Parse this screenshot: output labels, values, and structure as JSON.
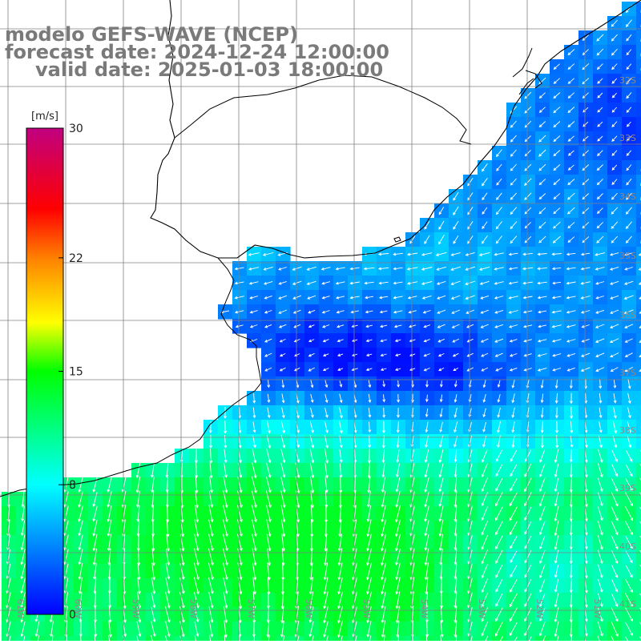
{
  "titles": {
    "model": "modelo GEFS-WAVE (NCEP)",
    "forecast": "forecast date: 2024-12-24 12:00:00",
    "valid": "valid date: 2025-01-03 18:00:00"
  },
  "colorbar": {
    "unit": "[m/s]",
    "min": 0,
    "max": 30,
    "tick_labels": [
      "30",
      "22",
      "15",
      "8",
      "0"
    ],
    "tick_values": [
      30,
      22,
      15,
      8,
      0
    ],
    "stops": [
      {
        "v": 0,
        "color": "#0000ff"
      },
      {
        "v": 8,
        "color": "#00ffff"
      },
      {
        "v": 15,
        "color": "#00ff00"
      },
      {
        "v": 18,
        "color": "#ffff00"
      },
      {
        "v": 22,
        "color": "#ff8000"
      },
      {
        "v": 25,
        "color": "#ff0000"
      },
      {
        "v": 30,
        "color": "#c00080"
      }
    ]
  },
  "lat_labels": [
    "32S",
    "33S",
    "34S",
    "35S",
    "36S",
    "37S",
    "38S",
    "39S",
    "40S",
    "41S"
  ],
  "lon_labels": [
    "61W",
    "60W",
    "59W",
    "58W",
    "57W",
    "56W",
    "55W",
    "54W",
    "53W",
    "52W",
    "51W"
  ],
  "colors": {
    "title": "#7a7a7a",
    "grid": "#808080",
    "coast": "#000000",
    "arrow": "#ffffff"
  }
}
